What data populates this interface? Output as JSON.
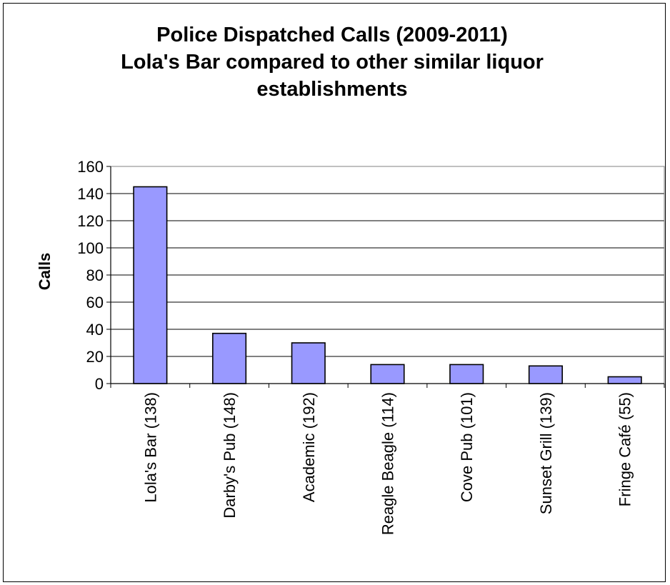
{
  "chart_data": {
    "type": "bar",
    "title_lines": [
      "Police Dispatched Calls (2009-2011)",
      "Lola's Bar compared to other similar liquor",
      "establishments"
    ],
    "xlabel": "",
    "ylabel": "Calls",
    "ylim": [
      0,
      160
    ],
    "yticks": [
      0,
      20,
      40,
      60,
      80,
      100,
      120,
      140,
      160
    ],
    "ytick_labels": [
      "0",
      "20",
      "40",
      "60",
      "80",
      "100",
      "120",
      "140",
      "160"
    ],
    "categories": [
      "Lola's Bar (138)",
      "Darby's Pub (148)",
      "Academic (192)",
      "Reagle Beagle (114)",
      "Cove Pub (101)",
      "Sunset Grill (139)",
      "Fringe Café (55)"
    ],
    "values": [
      145,
      37,
      30,
      14,
      14,
      13,
      5
    ],
    "bar_color": "#9999ff",
    "grid": true,
    "legend": "none"
  }
}
